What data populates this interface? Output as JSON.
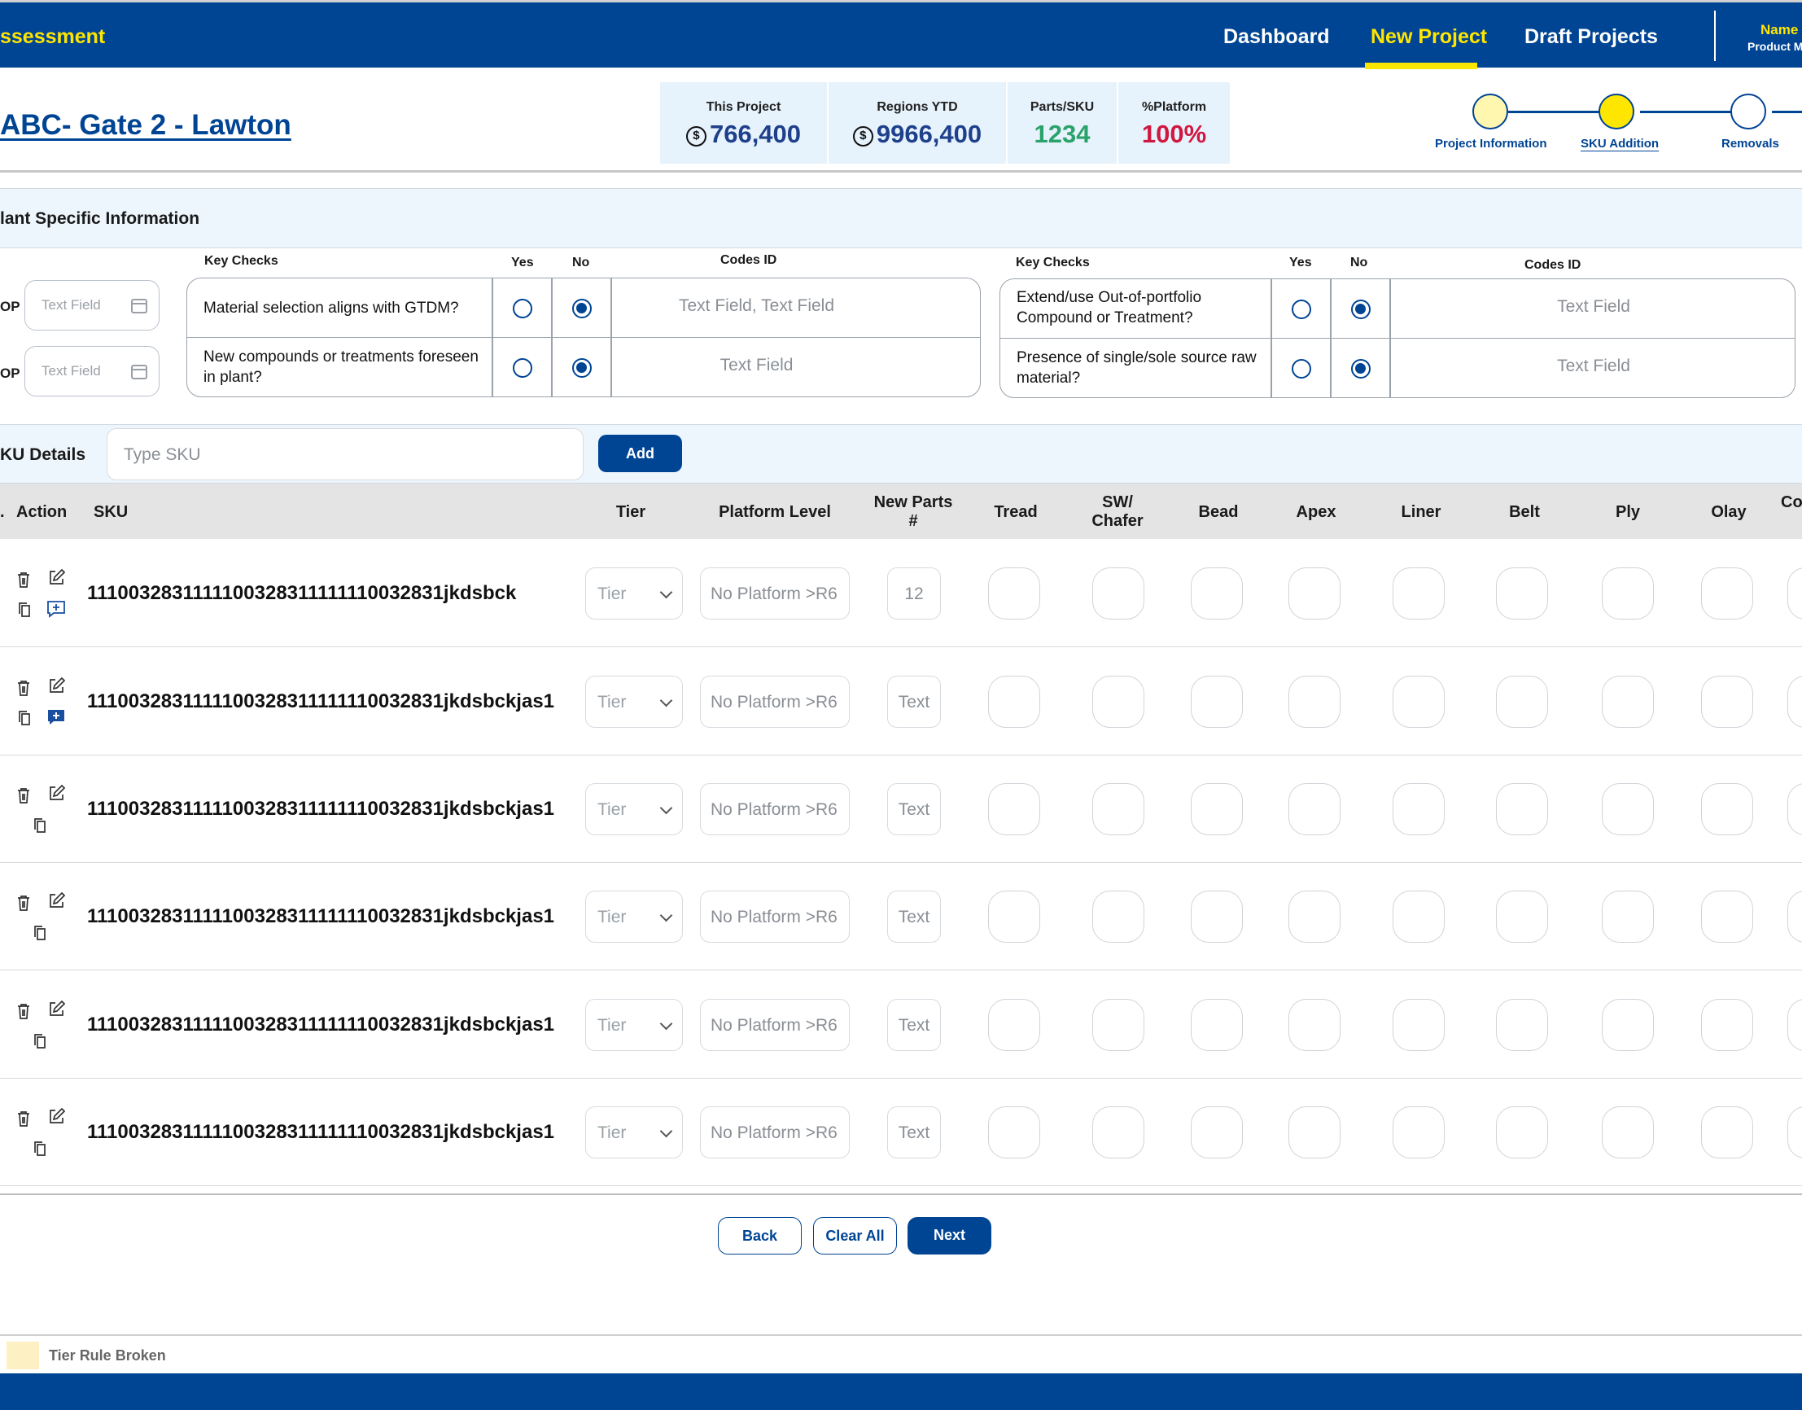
{
  "nav": {
    "brand": "ssessment",
    "items": [
      {
        "label": "Dashboard"
      },
      {
        "label": "New Project"
      },
      {
        "label": "Draft Projects"
      }
    ],
    "user_name": "Name I",
    "user_role": "Product Ma"
  },
  "header": {
    "title": " ABC- Gate 2 - Lawton",
    "stats": [
      {
        "label": "This Project",
        "value": "766,400",
        "currency": "$",
        "color": "#1e3f8a"
      },
      {
        "label": "Regions YTD",
        "value": "9966,400",
        "currency": "$",
        "color": "#1e3f8a"
      },
      {
        "label": "Parts/SKU",
        "value": "1234",
        "currency": "",
        "color": "#2aa36b"
      },
      {
        "label": "%Platform",
        "value": "100%",
        "currency": "",
        "color": "#d0173f"
      }
    ],
    "steps": [
      {
        "label": "Project Information",
        "fill": "#fff7b0",
        "status": "completed"
      },
      {
        "label": "SKU Addition",
        "fill": "#ffe600",
        "status": "current"
      },
      {
        "label": "Removals",
        "fill": "#ffffff",
        "status": "upcoming"
      }
    ]
  },
  "plant": {
    "title": "lant Specific Information",
    "date_fields": [
      {
        "label": "OP",
        "placeholder": "Text Field"
      },
      {
        "label": "OP",
        "placeholder": "Text Field"
      }
    ],
    "headers": {
      "key_checks": "Key Checks",
      "yes": "Yes",
      "no": "No",
      "codes": "Codes ID"
    },
    "left_checks": [
      {
        "question": "Material selection aligns with GTDM?",
        "selected": "no",
        "codes": "Text Field, Text Field"
      },
      {
        "question": "New compounds or treatments foreseen in plant?",
        "selected": "no",
        "codes": "Text Field"
      }
    ],
    "right_checks": [
      {
        "question": "Extend/use Out-of-portfolio Compound or Treatment?",
        "selected": "no",
        "codes": "Text Field"
      },
      {
        "question": "Presence of single/sole source raw material?",
        "selected": "no",
        "codes": "Text Field"
      }
    ]
  },
  "sku": {
    "title": "KU Details",
    "placeholder": "Type SKU",
    "add_label": "Add"
  },
  "table": {
    "columns": {
      "no": ".",
      "action": "Action",
      "sku": "SKU",
      "tier": "Tier",
      "platform": "Platform Level",
      "parts_1": "New Parts",
      "parts_2": "#",
      "tread": "Tread",
      "sw_1": "SW/",
      "sw_2": "Chafer",
      "bead": "Bead",
      "apex": "Apex",
      "liner": "Liner",
      "belt": "Belt",
      "ply": "Ply",
      "olay": "Olay",
      "co": "Co"
    },
    "rows": [
      {
        "sku": "1110032831111100328311111110032831jkdsbck",
        "tier": "Tier",
        "platform": "No Platform >R6",
        "parts": "12",
        "comment": "outline"
      },
      {
        "sku": "1110032831111100328311111110032831jkdsbckjas1",
        "tier": "Tier",
        "platform": "No Platform >R6",
        "parts": "Text",
        "comment": "filled"
      },
      {
        "sku": "1110032831111100328311111110032831jkdsbckjas1",
        "tier": "Tier",
        "platform": "No Platform >R6",
        "parts": "Text",
        "comment": "none"
      },
      {
        "sku": "1110032831111100328311111110032831jkdsbckjas1",
        "tier": "Tier",
        "platform": "No Platform >R6",
        "parts": "Text",
        "comment": "none"
      },
      {
        "sku": "1110032831111100328311111110032831jkdsbckjas1",
        "tier": "Tier",
        "platform": "No Platform >R6",
        "parts": "Text",
        "comment": "none"
      },
      {
        "sku": "1110032831111100328311111110032831jkdsbckjas1",
        "tier": "Tier",
        "platform": "No Platform >R6",
        "parts": "Text",
        "comment": "none"
      }
    ]
  },
  "footer_buttons": {
    "back": "Back",
    "clear": "Clear All",
    "next": "Next"
  },
  "legend": {
    "label": "Tier Rule Broken",
    "color": "#fdf0c2"
  }
}
